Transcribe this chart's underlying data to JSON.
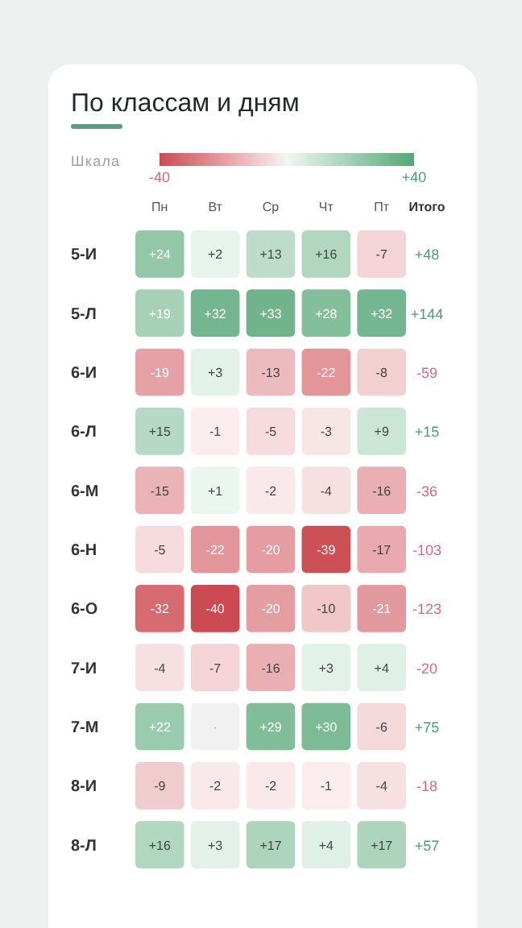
{
  "chart_data": {
    "type": "heatmap",
    "title": "По классам и дням",
    "clabel": "Шкала",
    "clim": [
      -40,
      40
    ],
    "cticks": [
      {
        "value": -40,
        "label": "-40"
      },
      {
        "value": 40,
        "label": "+40"
      }
    ],
    "categories": [
      "Пн",
      "Вт",
      "Ср",
      "Чт",
      "Пт"
    ],
    "y_categories": [
      "5-И",
      "5-Л",
      "6-И",
      "6-Л",
      "6-М",
      "6-Н",
      "6-О",
      "7-И",
      "7-М",
      "8-И",
      "8-Л"
    ],
    "y2label": "Итого",
    "y2_categories": [
      "+48",
      "+144",
      "-59",
      "+15",
      "-36",
      "-103",
      "-123",
      "-20",
      "+75",
      "-18",
      "+57"
    ],
    "cells": [
      [
        24,
        2,
        13,
        16,
        -7
      ],
      [
        19,
        32,
        33,
        28,
        32
      ],
      [
        -19,
        3,
        -13,
        -22,
        -8
      ],
      [
        15,
        -1,
        -5,
        -3,
        9
      ],
      [
        -15,
        1,
        -2,
        -4,
        -16
      ],
      [
        -5,
        -22,
        -20,
        -39,
        -17
      ],
      [
        -32,
        -40,
        -20,
        -10,
        -21
      ],
      [
        -4,
        -7,
        -16,
        3,
        4
      ],
      [
        22,
        null,
        29,
        30,
        -6
      ],
      [
        -9,
        -2,
        -2,
        -1,
        -4
      ],
      [
        16,
        3,
        17,
        4,
        17
      ]
    ],
    "cell_labels": [
      [
        "+24",
        "+2",
        "+13",
        "+16",
        "-7"
      ],
      [
        "+19",
        "+32",
        "+33",
        "+28",
        "+32"
      ],
      [
        "-19",
        "+3",
        "-13",
        "-22",
        "-8"
      ],
      [
        "+15",
        "-1",
        "-5",
        "-3",
        "+9"
      ],
      [
        "-15",
        "+1",
        "-2",
        "-4",
        "-16"
      ],
      [
        "-5",
        "-22",
        "-20",
        "-39",
        "-17"
      ],
      [
        "-32",
        "-40",
        "-20",
        "-10",
        "-21"
      ],
      [
        "-4",
        "-7",
        "-16",
        "+3",
        "+4"
      ],
      [
        "+22",
        "·",
        "+29",
        "+30",
        "-6"
      ],
      [
        "-9",
        "-2",
        "-2",
        "-1",
        "-4"
      ],
      [
        "+16",
        "+3",
        "+17",
        "+4",
        "+17"
      ]
    ]
  }
}
